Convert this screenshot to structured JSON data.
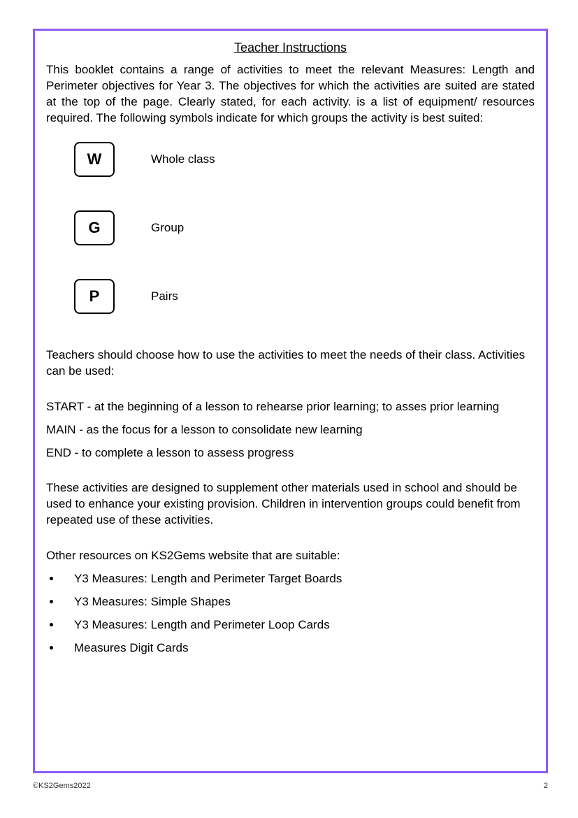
{
  "colors": {
    "border": "#8b5cf6",
    "background": "#ffffff",
    "text": "#000000"
  },
  "title": "Teacher Instructions",
  "intro": "This booklet contains a range of activities to meet the relevant Measures: Length and Perimeter objectives for Year 3. The objectives for which the activities are suited are stated at the top of the page. Clearly stated, for each activity. is a list of equipment/ resources required. The following symbols indicate for which groups the activity is best suited:",
  "symbols": [
    {
      "letter": "W",
      "label": "Whole class"
    },
    {
      "letter": "G",
      "label": "Group"
    },
    {
      "letter": "P",
      "label": "Pairs"
    }
  ],
  "choose_text": "Teachers should choose how to use the activities to meet the needs of their class. Activities can be used:",
  "usage": [
    "START - at the beginning of a lesson to rehearse prior learning; to asses prior learning",
    "MAIN - as the focus for a lesson to consolidate new learning",
    "END - to complete a lesson to assess progress"
  ],
  "supplement_text": "These activities are designed to supplement other materials used in school and should be used to enhance your existing provision. Children in intervention groups could benefit from repeated use of these activities.",
  "resources_intro": "Other resources on KS2Gems website that are suitable:",
  "resources": [
    "Y3 Measures: Length and Perimeter Target Boards",
    "Y3 Measures: Simple Shapes",
    "Y3 Measures: Length and Perimeter Loop Cards",
    "Measures Digit Cards"
  ],
  "footer": {
    "copyright": "©KS2Gems2022",
    "page_number": "2"
  }
}
